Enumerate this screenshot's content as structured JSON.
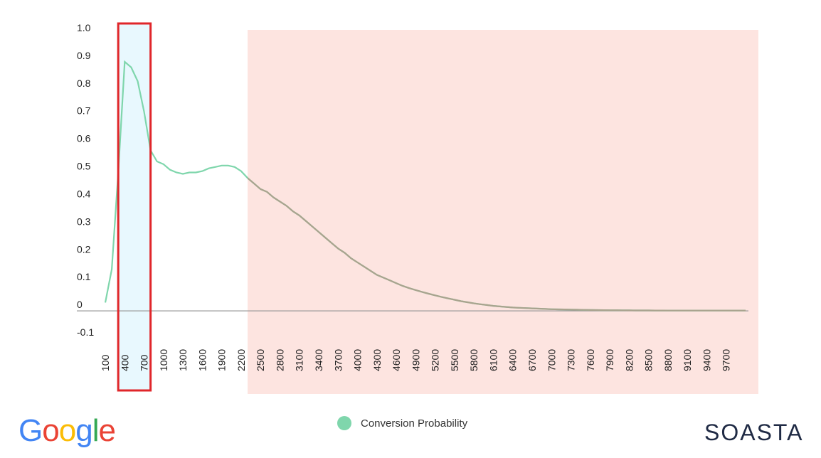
{
  "chart_data": {
    "type": "line",
    "y_ticks": [
      "1.0",
      "0.9",
      "0.8",
      "0.7",
      "0.6",
      "0.5",
      "0.4",
      "0.3",
      "0.2",
      "0.1",
      "0",
      "-0.1"
    ],
    "y_tick_values": [
      1.0,
      0.9,
      0.8,
      0.7,
      0.6,
      0.5,
      0.4,
      0.3,
      0.2,
      0.1,
      0,
      -0.1
    ],
    "ylim": [
      -0.1,
      1.0
    ],
    "x_ticks": [
      "100",
      "400",
      "700",
      "1000",
      "1300",
      "1600",
      "1900",
      "2200",
      "2500",
      "2800",
      "3100",
      "3400",
      "3700",
      "4000",
      "4300",
      "4600",
      "4900",
      "5200",
      "5500",
      "5800",
      "6100",
      "6400",
      "6700",
      "7000",
      "7300",
      "7600",
      "7900",
      "8200",
      "8500",
      "8800",
      "9100",
      "9400",
      "9700"
    ],
    "series": [
      {
        "name": "Conversion Probability",
        "color": "#7fd6ac",
        "x": [
          100,
          200,
          300,
          400,
          500,
          600,
          700,
          800,
          900,
          1000,
          1100,
          1200,
          1300,
          1400,
          1500,
          1600,
          1700,
          1800,
          1900,
          2000,
          2100,
          2200,
          2300,
          2400,
          2500,
          2600,
          2700,
          2800,
          2900,
          3000,
          3100,
          3200,
          3300,
          3400,
          3500,
          3600,
          3700,
          3800,
          3900,
          4000,
          4100,
          4200,
          4300,
          4400,
          4500,
          4600,
          4700,
          4800,
          4900,
          5000,
          5100,
          5200,
          5300,
          5400,
          5500,
          5600,
          5700,
          5800,
          5900,
          6000,
          6100,
          6200,
          6300,
          6400,
          6500,
          6600,
          6700,
          6800,
          6900,
          7000,
          7100,
          7200,
          7300,
          7400,
          7500,
          7600,
          7700,
          7800,
          7900,
          8000,
          8100,
          8200,
          8300,
          8400,
          8500,
          8600,
          8700,
          8800,
          8900,
          9000,
          9100,
          9200,
          9300,
          9400,
          9500,
          9600,
          9700,
          9800,
          9900,
          10000
        ],
        "values": [
          0.03,
          0.15,
          0.5,
          0.9,
          0.88,
          0.83,
          0.72,
          0.58,
          0.54,
          0.53,
          0.51,
          0.5,
          0.495,
          0.5,
          0.5,
          0.505,
          0.515,
          0.52,
          0.525,
          0.525,
          0.52,
          0.505,
          0.48,
          0.46,
          0.44,
          0.43,
          0.41,
          0.395,
          0.38,
          0.36,
          0.345,
          0.325,
          0.305,
          0.285,
          0.265,
          0.245,
          0.225,
          0.21,
          0.19,
          0.175,
          0.16,
          0.145,
          0.13,
          0.12,
          0.11,
          0.1,
          0.09,
          0.082,
          0.075,
          0.068,
          0.062,
          0.056,
          0.05,
          0.045,
          0.04,
          0.035,
          0.031,
          0.027,
          0.024,
          0.021,
          0.018,
          0.016,
          0.014,
          0.012,
          0.011,
          0.01,
          0.009,
          0.008,
          0.007,
          0.006,
          0.0055,
          0.005,
          0.0045,
          0.004,
          0.0035,
          0.003,
          0.0028,
          0.0026,
          0.0024,
          0.0022,
          0.002,
          0.0018,
          0.0016,
          0.0015,
          0.0014,
          0.0013,
          0.0012,
          0.0011,
          0.001,
          0.001,
          0.001,
          0.001,
          0.001,
          0.001,
          0.001,
          0.001,
          0.001,
          0.001,
          0.001,
          0.001
        ]
      }
    ],
    "highlight_optimal": {
      "from": 300,
      "to": 800,
      "fill": "#e8f8fe",
      "border": "#e0262a"
    },
    "highlight_slow": {
      "from": 2300,
      "fill": "#fde4e0"
    },
    "grid": false,
    "legend_position": "bottom-center"
  },
  "legend": {
    "label": "Conversion Probability"
  },
  "logos": {
    "google": "Google",
    "soasta": "SOASTA"
  },
  "colors": {
    "line": "#7fd6ac",
    "line_in_red_zone": "#a9a38e",
    "axis": "#999999"
  }
}
